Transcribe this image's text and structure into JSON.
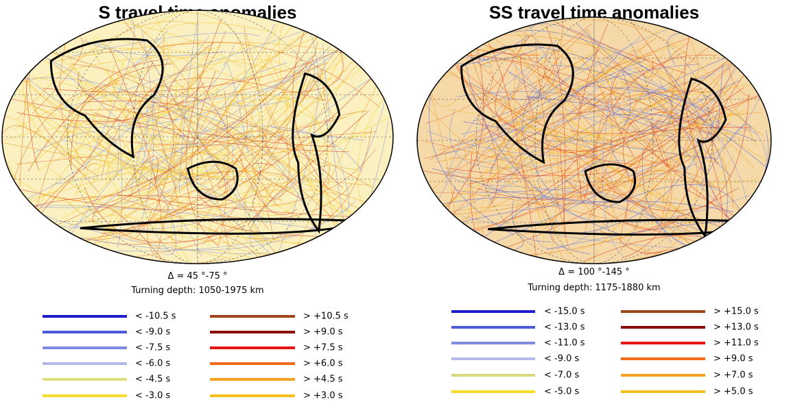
{
  "panels": [
    {
      "title": "S travel time anomalies",
      "delta": "Δ = 45 °-75 °",
      "depth": "Turning depth: 1050-1975 km",
      "legend": {
        "left": [
          {
            "label": "< -10.5  s",
            "color": "#1c1ccc"
          },
          {
            "label": "< -9.0  s",
            "color": "#4a5ad8"
          },
          {
            "label": "< -7.5  s",
            "color": "#7f8ae0"
          },
          {
            "label": "< -6.0  s",
            "color": "#b4b8e8"
          },
          {
            "label": "< -4.5  s",
            "color": "#e0dc80"
          },
          {
            "label": "< -3.0  s",
            "color": "#f5dc2a"
          }
        ],
        "right": [
          {
            "label": "> +10.5  s",
            "color": "#a0461e"
          },
          {
            "label": "> +9.0  s",
            "color": "#8c0a0a"
          },
          {
            "label": "> +7.5  s",
            "color": "#e81414"
          },
          {
            "label": "> +6.0  s",
            "color": "#f06a1e"
          },
          {
            "label": "> +4.5  s",
            "color": "#f5a01e"
          },
          {
            "label": "> +3.0  s",
            "color": "#f5c01e"
          }
        ]
      }
    },
    {
      "title": "SS travel time anomalies",
      "delta": "Δ = 100 °-145 °",
      "depth": "Turning depth: 1175-1880 km",
      "legend": {
        "left": [
          {
            "label": "< -15.0  s",
            "color": "#1c1ccc"
          },
          {
            "label": "< -13.0  s",
            "color": "#4a5ad8"
          },
          {
            "label": "< -11.0  s",
            "color": "#7f8ae0"
          },
          {
            "label": "< -9.0  s",
            "color": "#b4b8e8"
          },
          {
            "label": "< -7.0  s",
            "color": "#d8d880"
          },
          {
            "label": "< -5.0  s",
            "color": "#f5dc2a"
          }
        ],
        "right": [
          {
            "label": "> +15.0  s",
            "color": "#a0461e"
          },
          {
            "label": "> +13.0  s",
            "color": "#8c0a0a"
          },
          {
            "label": "> +11.0  s",
            "color": "#e81414"
          },
          {
            "label": "> +9.0  s",
            "color": "#f06a1e"
          },
          {
            "label": "> +7.0  s",
            "color": "#f5a01e"
          },
          {
            "label": "> +5.0  s",
            "color": "#f5c01e"
          }
        ]
      }
    }
  ]
}
